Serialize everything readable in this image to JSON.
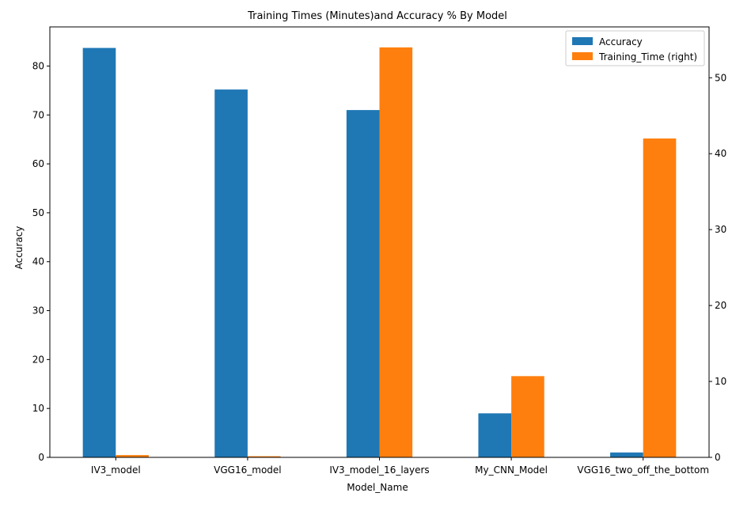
{
  "chart_data": {
    "type": "bar",
    "title": "Training Times (Minutes)and Accuracy % By Model",
    "xlabel": "Model_Name",
    "ylabel": "Accuracy",
    "ylabel_right": "",
    "categories": [
      "IV3_model",
      "VGG16_model",
      "IV3_model_16_layers",
      "My_CNN_Model",
      "VGG16_two_off_the_bottom"
    ],
    "series": [
      {
        "name": "Accuracy",
        "axis": "left",
        "color": "#1f77b4",
        "values": [
          83.7,
          75.2,
          71.0,
          9.0,
          1.0
        ]
      },
      {
        "name": "Training_Time (right)",
        "axis": "right",
        "color": "#ff7f0e",
        "values": [
          0.3,
          0.15,
          54.0,
          10.7,
          42.0
        ]
      }
    ],
    "ylim": [
      0,
      88.0
    ],
    "ylim_right": [
      0,
      56.7
    ],
    "yticks": [
      0,
      10,
      20,
      30,
      40,
      50,
      60,
      70,
      80
    ],
    "yticks_right": [
      0,
      10,
      20,
      30,
      40,
      50
    ],
    "legend_position": "top-right",
    "grid": false
  }
}
